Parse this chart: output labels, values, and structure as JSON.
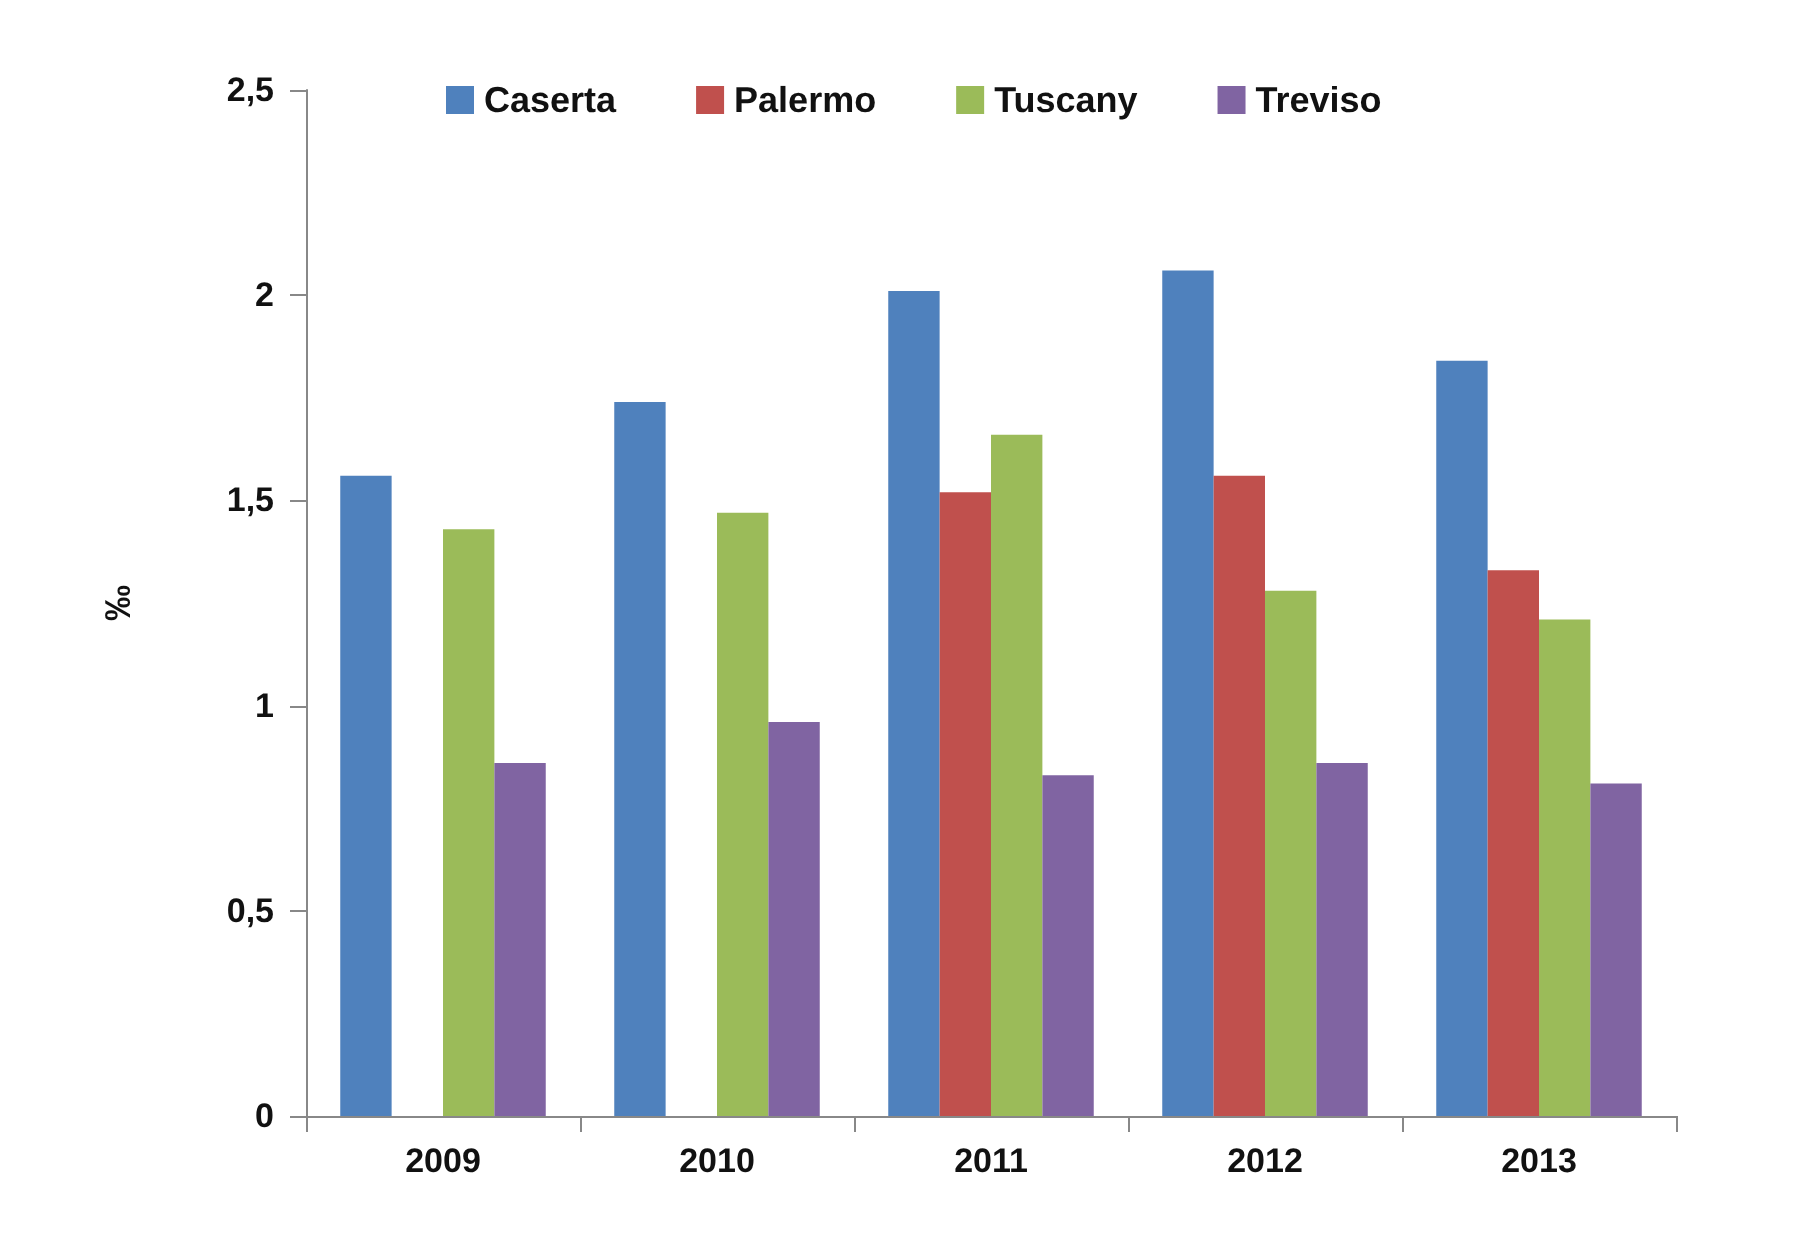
{
  "chart_data": {
    "type": "bar",
    "ylabel": "‰",
    "categories": [
      "2009",
      "2010",
      "2011",
      "2012",
      "2013"
    ],
    "series": [
      {
        "name": "Caserta",
        "color": "#4f81bd",
        "values": [
          1.56,
          1.74,
          2.01,
          2.06,
          1.84
        ]
      },
      {
        "name": "Palermo",
        "color": "#c0504d",
        "values": [
          null,
          null,
          1.52,
          1.56,
          1.33
        ]
      },
      {
        "name": "Tuscany",
        "color": "#9bbb59",
        "values": [
          1.43,
          1.47,
          1.66,
          1.28,
          1.21
        ]
      },
      {
        "name": "Treviso",
        "color": "#8064a2",
        "values": [
          0.86,
          0.96,
          0.83,
          0.86,
          0.81
        ]
      }
    ],
    "ylim": [
      0,
      2.5
    ],
    "yticks": [
      0,
      {
        "value": 0.5,
        "label": "0,5"
      },
      1,
      {
        "value": 1.5,
        "label": "1,5"
      },
      2,
      {
        "value": 2.5,
        "label": "2,5"
      }
    ],
    "grid": false,
    "legend": "top"
  }
}
